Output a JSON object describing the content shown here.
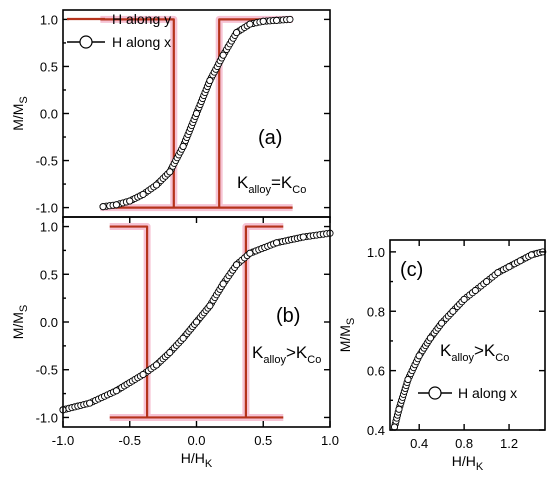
{
  "chart_data": [
    {
      "panel": "a",
      "type": "line",
      "panel_label": "(a)",
      "condition": {
        "base": "K",
        "sub_left": "alloy",
        "relation": "=",
        "sub_right": "Co"
      },
      "ylabel": {
        "base": "M/M",
        "sub": "S"
      },
      "xlim": [
        -1.0,
        1.0
      ],
      "ylim": [
        -1.1,
        1.1
      ],
      "yticks": [
        "1.0",
        "0.5",
        "0.0",
        "-0.5",
        "-1.0"
      ],
      "ytick_values": [
        1.0,
        0.5,
        0.0,
        -0.5,
        -1.0
      ],
      "legend": {
        "position": "top-left",
        "entries": [
          "H along y",
          "H along x"
        ]
      },
      "series": [
        {
          "name": "H along y",
          "style": "hysteresis",
          "color": "#b5331c",
          "coercive_field": 0.17,
          "x_range": [
            -0.72,
            0.72
          ]
        },
        {
          "name": "H along x",
          "style": "open-circles",
          "x": [
            -0.7,
            -0.6,
            -0.5,
            -0.4,
            -0.3,
            -0.2,
            -0.1,
            0.0,
            0.1,
            0.2,
            0.3,
            0.4,
            0.5,
            0.6,
            0.7
          ],
          "y": [
            -0.99,
            -0.97,
            -0.93,
            -0.86,
            -0.76,
            -0.62,
            -0.35,
            0.0,
            0.35,
            0.62,
            0.86,
            0.95,
            0.98,
            0.99,
            1.0
          ]
        }
      ]
    },
    {
      "panel": "b",
      "type": "line",
      "panel_label": "(b)",
      "condition": {
        "base": "K",
        "sub_left": "alloy",
        "relation": ">",
        "sub_right": "Co"
      },
      "ylabel": {
        "base": "M/M",
        "sub": "S"
      },
      "xlabel": {
        "base": "H/H",
        "sub": "K"
      },
      "xlim": [
        -1.0,
        1.0
      ],
      "ylim": [
        -1.1,
        1.1
      ],
      "xticks": [
        "-1.0",
        "-0.5",
        "0.0",
        "0.5",
        "1.0"
      ],
      "xtick_values": [
        -1.0,
        -0.5,
        0.0,
        0.5,
        1.0
      ],
      "yticks": [
        "1.0",
        "0.5",
        "0.0",
        "-0.5",
        "-1.0"
      ],
      "ytick_values": [
        1.0,
        0.5,
        0.0,
        -0.5,
        -1.0
      ],
      "series": [
        {
          "name": "H along y",
          "style": "hysteresis",
          "color": "#b5331c",
          "coercive_field": 0.37,
          "x_range": [
            -0.65,
            0.65
          ]
        },
        {
          "name": "H along x",
          "style": "open-circles",
          "x": [
            -1.0,
            -0.8,
            -0.6,
            -0.4,
            -0.3,
            -0.2,
            -0.1,
            0.0,
            0.1,
            0.2,
            0.3,
            0.4,
            0.6,
            0.8,
            1.0
          ],
          "y": [
            -0.92,
            -0.85,
            -0.72,
            -0.55,
            -0.45,
            -0.32,
            -0.17,
            0.0,
            0.17,
            0.4,
            0.6,
            0.72,
            0.83,
            0.89,
            0.93
          ]
        }
      ]
    },
    {
      "panel": "c",
      "type": "line",
      "panel_label": "(c)",
      "condition": {
        "base": "K",
        "sub_left": "alloy",
        "relation": ">",
        "sub_right": "Co"
      },
      "ylabel": {
        "base": "M/M",
        "sub": "S"
      },
      "xlabel": {
        "base": "H/H",
        "sub": "K"
      },
      "xlim": [
        0.14,
        1.52
      ],
      "ylim": [
        0.4,
        1.04
      ],
      "xticks": [
        "0.4",
        "0.8",
        "1.2"
      ],
      "xtick_values": [
        0.4,
        0.8,
        1.2
      ],
      "yticks": [
        "1.0",
        "0.8",
        "0.6",
        "0.4"
      ],
      "ytick_values": [
        1.0,
        0.8,
        0.6,
        0.4
      ],
      "legend": {
        "position": "bottom-right",
        "entries": [
          "H along x"
        ]
      },
      "series": [
        {
          "name": "H along x",
          "style": "open-circles",
          "x": [
            0.18,
            0.22,
            0.3,
            0.4,
            0.5,
            0.6,
            0.7,
            0.8,
            0.9,
            1.0,
            1.1,
            1.2,
            1.3,
            1.4,
            1.5
          ],
          "y": [
            0.41,
            0.47,
            0.57,
            0.65,
            0.71,
            0.76,
            0.8,
            0.84,
            0.87,
            0.9,
            0.93,
            0.95,
            0.97,
            0.99,
            1.0
          ]
        }
      ]
    }
  ]
}
